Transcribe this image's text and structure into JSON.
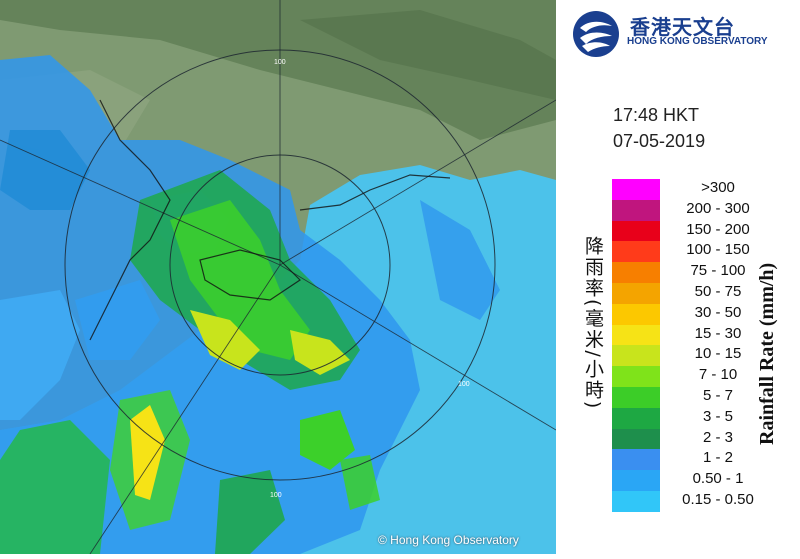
{
  "header": {
    "org_name_cn": "香港天文台",
    "org_name_en": "HONG KONG OBSERVATORY",
    "time": "17:48 HKT",
    "date": "07-05-2019"
  },
  "map": {
    "range_labels": [
      "100",
      "100",
      "100"
    ],
    "copyright": "© Hong Kong Observatory"
  },
  "legend": {
    "title_cn": "降雨率(毫米/小時)",
    "title_en": "Rainfall Rate (mm/h)",
    "items": [
      {
        "label": ">300",
        "color": "#ff00ff"
      },
      {
        "label": "200 - 300",
        "color": "#c0157e"
      },
      {
        "label": "150 - 200",
        "color": "#e8001a"
      },
      {
        "label": "100 - 150",
        "color": "#ff3b1a"
      },
      {
        "label": "75 - 100",
        "color": "#f77f00"
      },
      {
        "label": "50 - 75",
        "color": "#f4a400"
      },
      {
        "label": "30 - 50",
        "color": "#fcc800"
      },
      {
        "label": "15 - 30",
        "color": "#f6e316"
      },
      {
        "label": "10 - 15",
        "color": "#c8e41c"
      },
      {
        "label": "7 - 10",
        "color": "#7fe31a"
      },
      {
        "label": "5 - 7",
        "color": "#3ccd28"
      },
      {
        "label": "3 - 5",
        "color": "#1ea843"
      },
      {
        "label": "2 - 3",
        "color": "#1e8f4c"
      },
      {
        "label": "1 - 2",
        "color": "#3a8ff0"
      },
      {
        "label": "0.50 - 1",
        "color": "#2aa6f5"
      },
      {
        "label": "0.15 - 0.50",
        "color": "#31c6f8"
      }
    ]
  }
}
